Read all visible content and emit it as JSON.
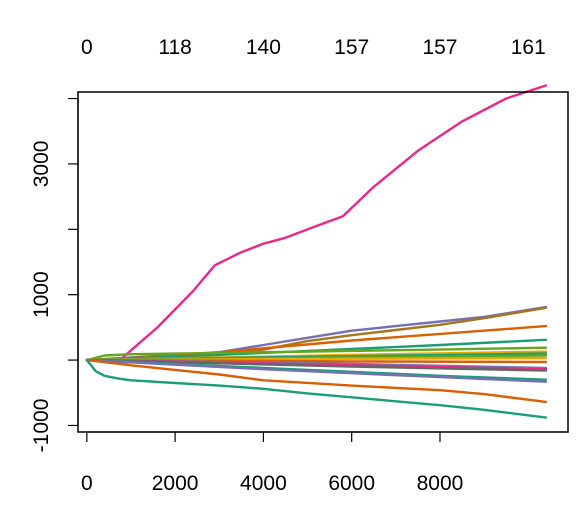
{
  "chart_data": {
    "type": "line",
    "title": "",
    "xlabel": "",
    "ylabel": "",
    "xlim": [
      -200,
      10900
    ],
    "ylim": [
      -1100,
      4100
    ],
    "x_ticks": [
      0,
      2000,
      4000,
      6000,
      8000
    ],
    "x_tick_labels": [
      "0",
      "2000",
      "4000",
      "6000",
      "8000"
    ],
    "y_ticks": [
      -1000,
      0,
      1000,
      2000,
      3000,
      4000
    ],
    "y_tick_labels": [
      "-1000",
      "",
      "1000",
      "",
      "3000",
      ""
    ],
    "top_axis_ticks": [
      0,
      2000,
      4000,
      6000,
      8000,
      10000
    ],
    "top_axis_labels": [
      "0",
      "118",
      "140",
      "157",
      "157",
      "161"
    ],
    "grid": false,
    "series": [
      {
        "color": "#e7298a",
        "x": [
          0,
          800,
          1600,
          2400,
          2900,
          3500,
          4000,
          4500,
          5200,
          5800,
          6500,
          7500,
          8500,
          9500,
          10400
        ],
        "y": [
          0,
          30,
          500,
          1050,
          1450,
          1650,
          1780,
          1870,
          2050,
          2200,
          2650,
          3200,
          3650,
          4000,
          4200
        ]
      },
      {
        "color": "#7570b3",
        "x": [
          0,
          1000,
          2000,
          3000,
          4000,
          5000,
          6000,
          7000,
          8000,
          9000,
          10400
        ],
        "y": [
          0,
          40,
          80,
          120,
          230,
          340,
          450,
          520,
          590,
          660,
          810
        ]
      },
      {
        "color": "#a6761d",
        "x": [
          0,
          1000,
          2000,
          3000,
          4000,
          5000,
          6000,
          7000,
          8000,
          9000,
          10400
        ],
        "y": [
          0,
          30,
          60,
          80,
          160,
          290,
          380,
          460,
          540,
          640,
          800
        ]
      },
      {
        "color": "#d95f02",
        "x": [
          0,
          2000,
          4000,
          6000,
          8000,
          10400
        ],
        "y": [
          0,
          60,
          180,
          300,
          400,
          520
        ]
      },
      {
        "color": "#1b9e77",
        "x": [
          0,
          2000,
          4000,
          6000,
          8000,
          10400
        ],
        "y": [
          0,
          50,
          110,
          170,
          230,
          310
        ]
      },
      {
        "color": "#66a61e",
        "x": [
          0,
          400,
          1000,
          3000,
          6000,
          8000,
          10400
        ],
        "y": [
          0,
          70,
          90,
          110,
          140,
          160,
          190
        ]
      },
      {
        "color": "#e6ab02",
        "x": [
          0,
          3000,
          6000,
          10400
        ],
        "y": [
          0,
          40,
          80,
          130
        ]
      },
      {
        "color": "#1b9e77",
        "x": [
          0,
          3000,
          6000,
          10400
        ],
        "y": [
          0,
          30,
          60,
          100
        ]
      },
      {
        "color": "#66a61e",
        "x": [
          0,
          3000,
          6000,
          10400
        ],
        "y": [
          0,
          20,
          40,
          70
        ]
      },
      {
        "color": "#e6ab02",
        "x": [
          0,
          3000,
          6000,
          10400
        ],
        "y": [
          0,
          10,
          20,
          30
        ]
      },
      {
        "color": "#d95f02",
        "x": [
          0,
          3000,
          6000,
          10400
        ],
        "y": [
          0,
          -10,
          -20,
          -30
        ]
      },
      {
        "color": "#7570b3",
        "x": [
          0,
          3000,
          6000,
          10400
        ],
        "y": [
          0,
          -30,
          -60,
          -120
        ]
      },
      {
        "color": "#e7298a",
        "x": [
          0,
          3000,
          6000,
          10400
        ],
        "y": [
          0,
          -40,
          -80,
          -140
        ]
      },
      {
        "color": "#666666",
        "x": [
          0,
          3000,
          6000,
          10400
        ],
        "y": [
          0,
          -50,
          -100,
          -160
        ]
      },
      {
        "color": "#1b9e77",
        "x": [
          0,
          2000,
          4000,
          6000,
          8000,
          10400
        ],
        "y": [
          0,
          -60,
          -120,
          -180,
          -240,
          -300
        ]
      },
      {
        "color": "#7570b3",
        "x": [
          0,
          2000,
          4000,
          6000,
          8000,
          10400
        ],
        "y": [
          0,
          -70,
          -140,
          -200,
          -260,
          -330
        ]
      },
      {
        "color": "#d95f02",
        "x": [
          0,
          1000,
          2000,
          3000,
          4000,
          6000,
          8000,
          9000,
          10400
        ],
        "y": [
          0,
          -80,
          -150,
          -220,
          -310,
          -390,
          -460,
          -520,
          -640
        ]
      },
      {
        "color": "#1b9e77",
        "x": [
          0,
          100,
          200,
          400,
          700,
          1000,
          2000,
          3000,
          4000,
          5000,
          6000,
          7000,
          8000,
          9000,
          10400
        ],
        "y": [
          0,
          -80,
          -170,
          -240,
          -280,
          -310,
          -350,
          -390,
          -440,
          -510,
          -570,
          -630,
          -690,
          -760,
          -880
        ]
      }
    ]
  }
}
